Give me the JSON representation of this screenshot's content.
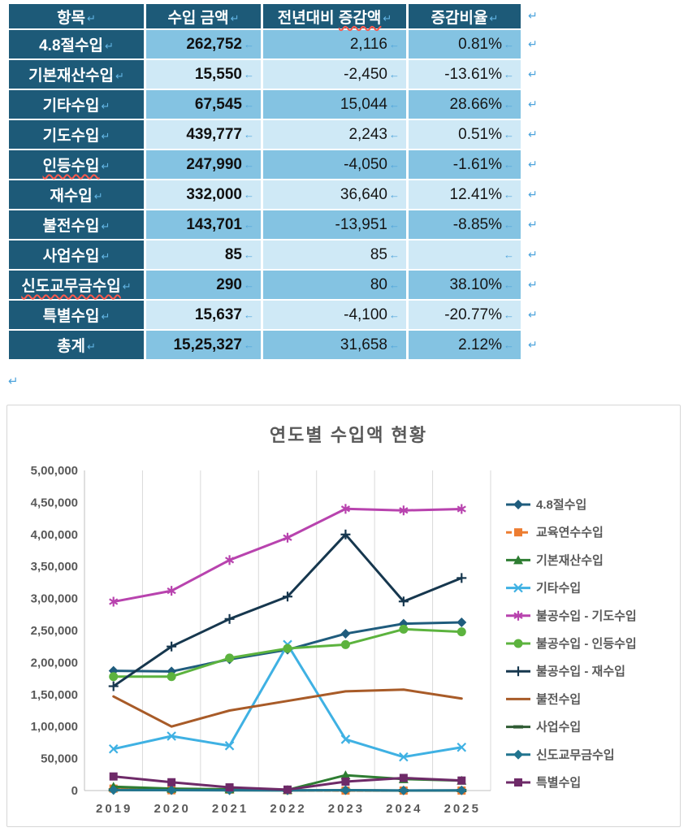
{
  "colors": {
    "header_bg": "#1d5a78",
    "label_bg": "#1d5a78",
    "row_medium": "#84c3e2",
    "row_light": "#cfe9f6",
    "mark_blue": "#4da4dc",
    "squiggle_red": "#ff5a4e",
    "chart_text_gray": "#595959",
    "grid_gray": "#d9d9d9",
    "axis_gray": "#bfbfbf"
  },
  "marks": {
    "cell_end": "←",
    "row_end": "↵",
    "para": "↵"
  },
  "table": {
    "header": [
      {
        "t": "항목",
        "sq": ""
      },
      {
        "t": "수입 금액",
        "sq": ""
      },
      {
        "t": "전년대비 ",
        "sq": "증감액"
      },
      {
        "t": "증감비율",
        "sq": ""
      }
    ],
    "rows": [
      {
        "label_t": "4.8절수입",
        "label_sq": "",
        "amount": "262,752",
        "change": "2,116",
        "rate": "0.81%"
      },
      {
        "label_t": "기본재산수입",
        "label_sq": "",
        "amount": "15,550",
        "change": "-2,450",
        "rate": "-13.61%"
      },
      {
        "label_t": "기타수입",
        "label_sq": "",
        "amount": "67,545",
        "change": "15,044",
        "rate": "28.66%"
      },
      {
        "label_t": "기도수입",
        "label_sq": "",
        "amount": "439,777",
        "change": "2,243",
        "rate": "0.51%"
      },
      {
        "label_t": "",
        "label_sq": "인등수입",
        "amount": "247,990",
        "change": "-4,050",
        "rate": "-1.61%"
      },
      {
        "label_t": "재수입",
        "label_sq": "",
        "amount": "332,000",
        "change": "36,640",
        "rate": "12.41%"
      },
      {
        "label_t": "불전수입",
        "label_sq": "",
        "amount": "143,701",
        "change": "-13,951",
        "rate": "-8.85%"
      },
      {
        "label_t": "사업수입",
        "label_sq": "",
        "amount": "85",
        "change": "85",
        "rate": ""
      },
      {
        "label_t": "",
        "label_sq": "신도교무금수입",
        "amount": "290",
        "change": "80",
        "rate": "38.10%"
      },
      {
        "label_t": "특별수입",
        "label_sq": "",
        "amount": "15,637",
        "change": "-4,100",
        "rate": "-20.77%"
      },
      {
        "label_t": "총계",
        "label_sq": "",
        "amount": "15,25,327",
        "change": "31,658",
        "rate": "2.12%"
      }
    ]
  },
  "chart_data": {
    "type": "line",
    "title": "연도별 수입액 현황",
    "categories": [
      "2019",
      "2020",
      "2021",
      "2022",
      "2023",
      "2024",
      "2025"
    ],
    "ylim": [
      0,
      500000
    ],
    "y_ticks": [
      "0",
      "50,000",
      "1,00,000",
      "1,50,000",
      "2,00,000",
      "2,50,000",
      "3,00,000",
      "3,50,000",
      "4,00,000",
      "4,50,000",
      "5,00,000"
    ],
    "grid": "vertical-only",
    "legend_position": "right",
    "series": [
      {
        "name": "4.8절수입",
        "color": "#1f5c7d",
        "marker": "diamond",
        "dash": false,
        "values": [
          187000,
          186000,
          205000,
          220000,
          245000,
          260636,
          262752
        ]
      },
      {
        "name": "교육연수수입",
        "color": "#ed7d31",
        "marker": "square",
        "dash": true,
        "values": [
          3000,
          500,
          1500,
          500,
          0,
          0,
          0
        ]
      },
      {
        "name": "기본재산수입",
        "color": "#2e7d32",
        "marker": "triangle",
        "dash": false,
        "values": [
          6000,
          3000,
          2000,
          1000,
          24000,
          18000,
          15550
        ]
      },
      {
        "name": "기타수입",
        "color": "#3fb1e3",
        "marker": "x",
        "dash": false,
        "values": [
          65000,
          85000,
          70000,
          228000,
          80000,
          52501,
          67545
        ]
      },
      {
        "name": "불공수입 - 기도수입",
        "color": "#b843ae",
        "marker": "asterisk",
        "dash": false,
        "values": [
          295000,
          312000,
          360000,
          395000,
          440000,
          437534,
          439777
        ]
      },
      {
        "name": "불공수입 - 인등수입",
        "color": "#5cb33e",
        "marker": "circle",
        "dash": false,
        "values": [
          178000,
          178000,
          207000,
          222000,
          228000,
          252040,
          247990
        ]
      },
      {
        "name": "불공수입 - 재수입",
        "color": "#16374e",
        "marker": "plus",
        "dash": false,
        "values": [
          163000,
          225000,
          268000,
          303000,
          400000,
          295360,
          332000
        ]
      },
      {
        "name": "불전수입",
        "color": "#a85b28",
        "marker": "none",
        "dash": false,
        "values": [
          147000,
          100000,
          125000,
          140000,
          155000,
          157652,
          143701
        ]
      },
      {
        "name": "사업수입",
        "color": "#2f5b33",
        "marker": "dash",
        "dash": false,
        "values": [
          1000,
          800,
          500,
          300,
          500,
          0,
          85
        ]
      },
      {
        "name": "신도교무금수입",
        "color": "#21748f",
        "marker": "diamond",
        "dash": false,
        "values": [
          800,
          600,
          400,
          300,
          600,
          210,
          290
        ]
      },
      {
        "name": "특별수입",
        "color": "#6e2a68",
        "marker": "square",
        "dash": false,
        "values": [
          22000,
          13000,
          5000,
          1500,
          14000,
          19737,
          15637
        ]
      }
    ]
  }
}
